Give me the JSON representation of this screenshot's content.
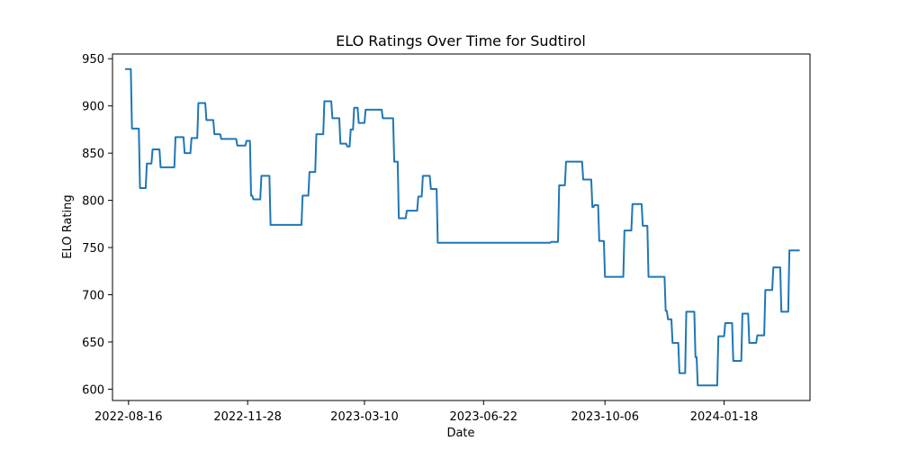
{
  "chart_data": {
    "type": "line",
    "title": "ELO Ratings Over Time for Sudtirol",
    "xlabel": "Date",
    "ylabel": "ELO Rating",
    "x_type": "date",
    "xlim": [
      "2022-08-02",
      "2024-04-02"
    ],
    "ylim": [
      588,
      955
    ],
    "x_ticks": [
      "2022-08-16",
      "2022-11-28",
      "2023-03-10",
      "2023-06-22",
      "2023-10-06",
      "2024-01-18"
    ],
    "y_ticks": [
      600,
      650,
      700,
      750,
      800,
      850,
      900,
      950
    ],
    "grid": false,
    "legend": "none",
    "series": [
      {
        "color": "#1f77b4",
        "points": [
          [
            "2022-08-13",
            939
          ],
          [
            "2022-08-18",
            939
          ],
          [
            "2022-08-19",
            876
          ],
          [
            "2022-08-25",
            876
          ],
          [
            "2022-08-26",
            813
          ],
          [
            "2022-08-31",
            813
          ],
          [
            "2022-09-01",
            839
          ],
          [
            "2022-09-05",
            839
          ],
          [
            "2022-09-06",
            854
          ],
          [
            "2022-09-12",
            854
          ],
          [
            "2022-09-13",
            835
          ],
          [
            "2022-09-25",
            835
          ],
          [
            "2022-09-26",
            867
          ],
          [
            "2022-10-03",
            867
          ],
          [
            "2022-10-04",
            850
          ],
          [
            "2022-10-09",
            850
          ],
          [
            "2022-10-10",
            866
          ],
          [
            "2022-10-15",
            866
          ],
          [
            "2022-10-16",
            903
          ],
          [
            "2022-10-22",
            903
          ],
          [
            "2022-10-23",
            885
          ],
          [
            "2022-10-29",
            885
          ],
          [
            "2022-10-30",
            870
          ],
          [
            "2022-11-04",
            870
          ],
          [
            "2022-11-05",
            865
          ],
          [
            "2022-11-18",
            865
          ],
          [
            "2022-11-19",
            858
          ],
          [
            "2022-11-26",
            858
          ],
          [
            "2022-11-27",
            863
          ],
          [
            "2022-11-30",
            863
          ],
          [
            "2022-12-01",
            805
          ],
          [
            "2022-12-02",
            805
          ],
          [
            "2022-12-03",
            801
          ],
          [
            "2022-12-09",
            801
          ],
          [
            "2022-12-10",
            826
          ],
          [
            "2022-12-17",
            826
          ],
          [
            "2022-12-18",
            774
          ],
          [
            "2023-01-14",
            774
          ],
          [
            "2023-01-15",
            805
          ],
          [
            "2023-01-20",
            805
          ],
          [
            "2023-01-21",
            830
          ],
          [
            "2023-01-26",
            830
          ],
          [
            "2023-01-27",
            870
          ],
          [
            "2023-02-02",
            870
          ],
          [
            "2023-02-03",
            905
          ],
          [
            "2023-02-09",
            905
          ],
          [
            "2023-02-10",
            887
          ],
          [
            "2023-02-16",
            887
          ],
          [
            "2023-02-17",
            860
          ],
          [
            "2023-02-22",
            860
          ],
          [
            "2023-02-23",
            857
          ],
          [
            "2023-02-25",
            857
          ],
          [
            "2023-02-26",
            875
          ],
          [
            "2023-02-28",
            875
          ],
          [
            "2023-03-01",
            898
          ],
          [
            "2023-03-04",
            898
          ],
          [
            "2023-03-05",
            882
          ],
          [
            "2023-03-10",
            882
          ],
          [
            "2023-03-11",
            896
          ],
          [
            "2023-03-25",
            896
          ],
          [
            "2023-03-26",
            887
          ],
          [
            "2023-04-04",
            887
          ],
          [
            "2023-04-05",
            841
          ],
          [
            "2023-04-08",
            841
          ],
          [
            "2023-04-09",
            781
          ],
          [
            "2023-04-15",
            781
          ],
          [
            "2023-04-16",
            789
          ],
          [
            "2023-04-25",
            789
          ],
          [
            "2023-04-26",
            804
          ],
          [
            "2023-04-29",
            804
          ],
          [
            "2023-04-30",
            826
          ],
          [
            "2023-05-06",
            826
          ],
          [
            "2023-05-07",
            812
          ],
          [
            "2023-05-12",
            812
          ],
          [
            "2023-05-13",
            755
          ],
          [
            "2023-08-19",
            755
          ],
          [
            "2023-08-20",
            756
          ],
          [
            "2023-08-26",
            756
          ],
          [
            "2023-08-27",
            816
          ],
          [
            "2023-09-01",
            816
          ],
          [
            "2023-09-02",
            841
          ],
          [
            "2023-09-16",
            841
          ],
          [
            "2023-09-17",
            822
          ],
          [
            "2023-09-24",
            822
          ],
          [
            "2023-09-25",
            793
          ],
          [
            "2023-09-26",
            793
          ],
          [
            "2023-09-27",
            795
          ],
          [
            "2023-09-30",
            795
          ],
          [
            "2023-10-01",
            757
          ],
          [
            "2023-10-05",
            757
          ],
          [
            "2023-10-06",
            719
          ],
          [
            "2023-10-22",
            719
          ],
          [
            "2023-10-23",
            768
          ],
          [
            "2023-10-29",
            768
          ],
          [
            "2023-10-30",
            796
          ],
          [
            "2023-11-07",
            796
          ],
          [
            "2023-11-08",
            773
          ],
          [
            "2023-11-12",
            773
          ],
          [
            "2023-11-13",
            719
          ],
          [
            "2023-11-27",
            719
          ],
          [
            "2023-11-28",
            683
          ],
          [
            "2023-11-29",
            683
          ],
          [
            "2023-11-30",
            674
          ],
          [
            "2023-12-03",
            674
          ],
          [
            "2023-12-04",
            649
          ],
          [
            "2023-12-09",
            649
          ],
          [
            "2023-12-10",
            617
          ],
          [
            "2023-12-15",
            617
          ],
          [
            "2023-12-16",
            682
          ],
          [
            "2023-12-23",
            682
          ],
          [
            "2023-12-24",
            634
          ],
          [
            "2023-12-25",
            634
          ],
          [
            "2023-12-26",
            604
          ],
          [
            "2024-01-12",
            604
          ],
          [
            "2024-01-13",
            656
          ],
          [
            "2024-01-18",
            656
          ],
          [
            "2024-01-19",
            670
          ],
          [
            "2024-01-25",
            670
          ],
          [
            "2024-01-26",
            630
          ],
          [
            "2024-02-02",
            630
          ],
          [
            "2024-02-03",
            680
          ],
          [
            "2024-02-08",
            680
          ],
          [
            "2024-02-09",
            649
          ],
          [
            "2024-02-15",
            649
          ],
          [
            "2024-02-16",
            657
          ],
          [
            "2024-02-22",
            657
          ],
          [
            "2024-02-23",
            705
          ],
          [
            "2024-02-29",
            705
          ],
          [
            "2024-03-01",
            729
          ],
          [
            "2024-03-07",
            729
          ],
          [
            "2024-03-08",
            682
          ],
          [
            "2024-03-14",
            682
          ],
          [
            "2024-03-15",
            747
          ],
          [
            "2024-03-24",
            747
          ]
        ]
      }
    ]
  }
}
